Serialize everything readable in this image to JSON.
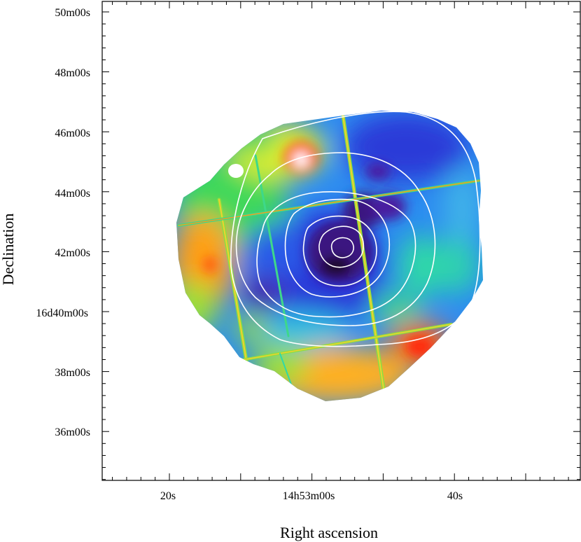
{
  "axes": {
    "xlabel": "Right ascension",
    "ylabel": "Declination",
    "x_ticks": [
      "20s",
      "14h53m00s",
      "40s"
    ],
    "y_ticks": [
      "50m00s",
      "48m00s",
      "46m00s",
      "44m00s",
      "42m00s",
      "16d40m00s",
      "38m00s",
      "36m00s"
    ]
  },
  "colors": {
    "frame": "#000000",
    "contour": "#ffffff",
    "colormap": [
      "#2a0a3a",
      "#3a1580",
      "#1a2bd8",
      "#1e6bf0",
      "#2fc0e0",
      "#2fd88a",
      "#7ee03a",
      "#f0e020",
      "#ff9a10",
      "#ff3a10",
      "#ffffff"
    ]
  }
}
